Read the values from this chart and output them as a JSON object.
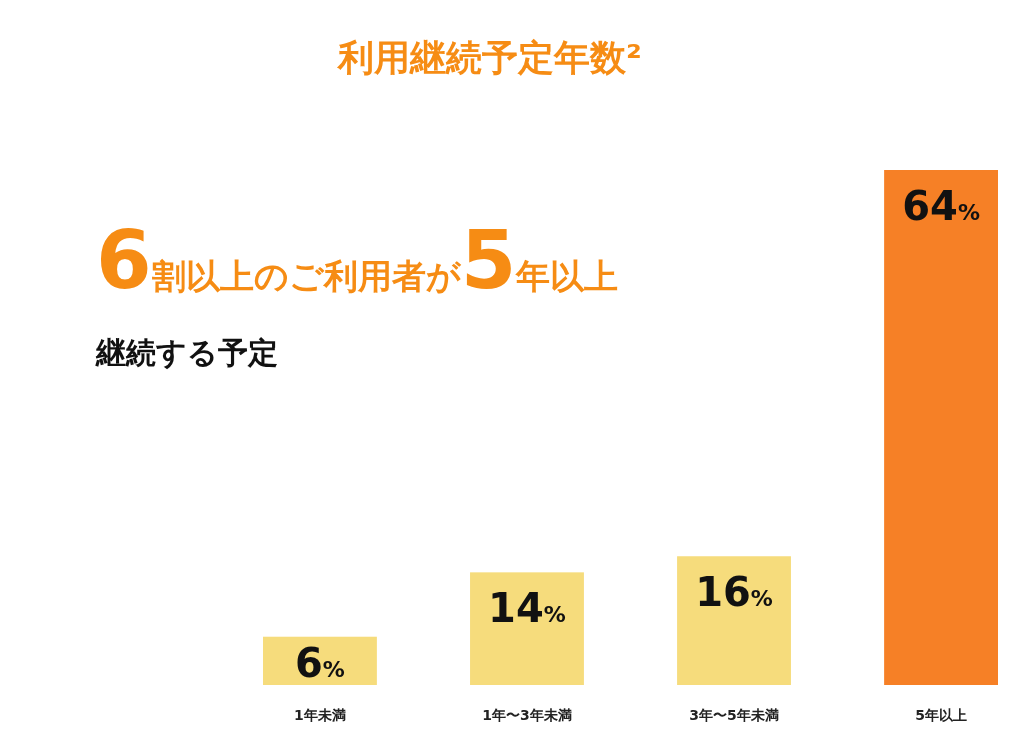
{
  "chart_data": {
    "type": "bar",
    "title": "利用継続予定年数²",
    "annotations": [
      "6割以上のご利用者が5年以上",
      "継続する予定"
    ],
    "categories": [
      "1年未満",
      "1年〜3年未満",
      "3年〜5年未満",
      "5年以上"
    ],
    "values": [
      6,
      14,
      16,
      64
    ],
    "colors": [
      "#f6dc7c",
      "#f6dc7c",
      "#f6dc7c",
      "#f68026"
    ],
    "value_labels": [
      "6%",
      "14%",
      "16%",
      "64%"
    ]
  }
}
